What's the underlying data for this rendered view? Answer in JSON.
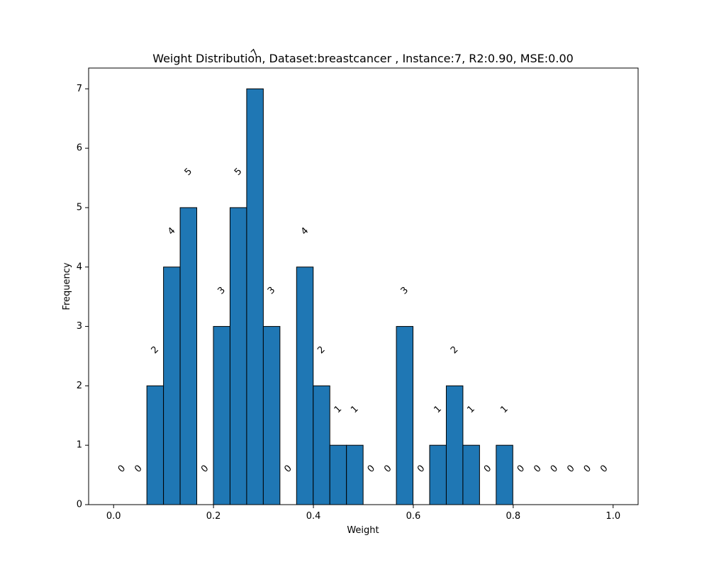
{
  "chart_data": {
    "type": "bar",
    "title": "Weight Distribution, Dataset:breastcancer , Instance:7, R2:0.90, MSE:0.00",
    "xlabel": "Weight",
    "ylabel": "Frequency",
    "xlim": [
      -0.05,
      1.05
    ],
    "ylim": [
      0,
      7.35
    ],
    "xticks": [
      0.0,
      0.2,
      0.4,
      0.6,
      0.8,
      1.0
    ],
    "xtick_labels": [
      "0.0",
      "0.2",
      "0.4",
      "0.6",
      "0.8",
      "1.0"
    ],
    "yticks": [
      0,
      1,
      2,
      3,
      4,
      5,
      6,
      7
    ],
    "ytick_labels": [
      "0",
      "1",
      "2",
      "3",
      "4",
      "5",
      "6",
      "7"
    ],
    "bin_start": 0.0,
    "bin_width": 0.0333,
    "values": [
      0,
      0,
      2,
      4,
      5,
      0,
      3,
      5,
      7,
      3,
      0,
      4,
      2,
      1,
      1,
      0,
      0,
      3,
      0,
      1,
      2,
      1,
      0,
      1,
      0,
      0,
      0,
      0,
      0,
      0
    ],
    "data_labels": [
      "0",
      "0",
      "2",
      "4",
      "5",
      "0",
      "3",
      "5",
      "7",
      "3",
      "0",
      "4",
      "2",
      "1",
      "1",
      "0",
      "0",
      "3",
      "0",
      "1",
      "2",
      "1",
      "0",
      "1",
      "0",
      "0",
      "0",
      "0",
      "0",
      "0"
    ],
    "bar_color": "#1f77b4",
    "edge_color": "#000000",
    "grid": false,
    "legend": "none"
  }
}
